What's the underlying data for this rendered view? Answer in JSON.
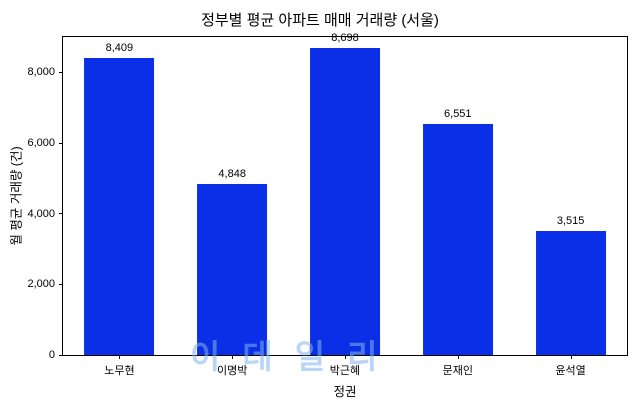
{
  "watermark": "이데일리",
  "chart_data": {
    "type": "bar",
    "title": "정부별 평균 아파트 매매 거래량 (서울)",
    "xlabel": "정권",
    "ylabel": "월 평균 거래량 (건)",
    "categories": [
      "노무현",
      "이명박",
      "박근혜",
      "문재인",
      "윤석열"
    ],
    "values": [
      8409,
      4848,
      8698,
      6551,
      3515
    ],
    "value_labels": [
      "8,409",
      "4,848",
      "8,698",
      "6,551",
      "3,515"
    ],
    "ylim": [
      0,
      9000
    ],
    "yticks": [
      0,
      2000,
      4000,
      6000,
      8000
    ],
    "ytick_labels": [
      "0",
      "2,000",
      "4,000",
      "6,000",
      "8,000"
    ],
    "bar_color": "#0b2fe6",
    "grid": false,
    "legend_position": "none"
  }
}
